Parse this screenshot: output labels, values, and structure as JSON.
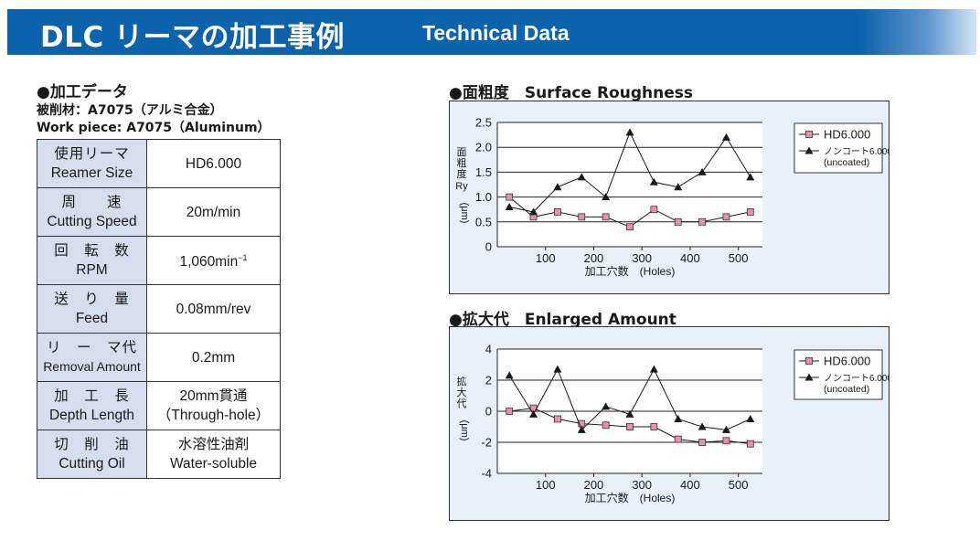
{
  "header": {
    "title_jp": "DLC リーマの加工事例",
    "title_en": "Technical Data"
  },
  "processing": {
    "title": "●加工データ",
    "workpiece_jp": "被削材：A7075（アルミ合金）",
    "workpiece_en": "Work piece: A7075（Aluminum）",
    "rows": [
      {
        "key_jp": "使用リーマ",
        "key_en": "Reamer Size",
        "value": "HD6.000",
        "value2": ""
      },
      {
        "key_jp": "周　　速",
        "key_en": "Cutting Speed",
        "value": "20m/min",
        "value2": ""
      },
      {
        "key_jp": "回　転　数",
        "key_en": "RPM",
        "value": "1,060min",
        "value2": ""
      },
      {
        "key_jp": "送　り　量",
        "key_en": "Feed",
        "value": "0.08mm/rev",
        "value2": ""
      },
      {
        "key_jp": "リ　ー　マ代",
        "key_en": "Removal Amount",
        "value": "0.2mm",
        "value2": ""
      },
      {
        "key_jp": "加　工　長",
        "key_en": "Depth Length",
        "value": "20mm貫通",
        "value2": "（Through-hole）"
      },
      {
        "key_jp": "切　削　油",
        "key_en": "Cutting Oil",
        "value": "水溶性油剤",
        "value2": "Water-soluble"
      }
    ],
    "rpm_superscript": "−1"
  },
  "chart_data": [
    {
      "type": "line",
      "title": "●面粗度　Surface Roughness",
      "xlabel": "加工穴数　(Holes)",
      "ylabel_jp": "面粗度",
      "ylabel_sym": "Ry",
      "ylabel_unit": "(μm)",
      "ylim": [
        0,
        2.5
      ],
      "yticks": [
        0,
        0.5,
        1.0,
        1.5,
        2.0,
        2.5
      ],
      "ytick_labels": [
        "0",
        "0.5",
        "1.0",
        "1.5",
        "2.0",
        "2.5"
      ],
      "xlim": [
        0,
        550
      ],
      "xticks": [
        100,
        200,
        300,
        400,
        500
      ],
      "x": [
        25,
        75,
        125,
        175,
        225,
        275,
        325,
        375,
        425,
        475,
        525
      ],
      "grid": "horizontal",
      "legend_position": "top-right",
      "series": [
        {
          "name": "HD6.000",
          "name2": "",
          "color": "#e98fb4",
          "marker": "square",
          "values": [
            1.0,
            0.6,
            0.7,
            0.6,
            0.6,
            0.4,
            0.75,
            0.5,
            0.5,
            0.6,
            0.7
          ]
        },
        {
          "name": "ノンコート6.000",
          "name2": "(uncoated)",
          "color": "#1a1a1a",
          "marker": "triangle",
          "values": [
            0.8,
            0.7,
            1.2,
            1.4,
            1.0,
            2.3,
            1.3,
            1.2,
            1.5,
            2.2,
            1.4
          ]
        }
      ]
    },
    {
      "type": "line",
      "title": "●拡大代　Enlarged Amount",
      "xlabel": "加工穴数　(Holes)",
      "ylabel_jp": "拡大代",
      "ylabel_sym": "",
      "ylabel_unit": "(μm)",
      "ylim": [
        -4,
        4
      ],
      "yticks": [
        -4,
        -2,
        0,
        2,
        4
      ],
      "ytick_labels": [
        "-4",
        "-2",
        "0",
        "2",
        "4"
      ],
      "xlim": [
        0,
        550
      ],
      "xticks": [
        100,
        200,
        300,
        400,
        500
      ],
      "x": [
        25,
        75,
        125,
        175,
        225,
        275,
        325,
        375,
        425,
        475,
        525
      ],
      "grid": "horizontal",
      "legend_position": "top-right",
      "series": [
        {
          "name": "HD6.000",
          "name2": "",
          "color": "#e98fb4",
          "marker": "square",
          "values": [
            0,
            0.2,
            -0.5,
            -0.8,
            -0.9,
            -1.0,
            -1.0,
            -1.8,
            -2.0,
            -1.9,
            -2.1
          ]
        },
        {
          "name": "ノンコート6.000",
          "name2": "(uncoated)",
          "color": "#1a1a1a",
          "marker": "triangle",
          "values": [
            2.3,
            -0.2,
            2.7,
            -1.2,
            0.3,
            -0.2,
            2.7,
            -0.5,
            -1.0,
            -1.2,
            -0.5
          ]
        }
      ]
    }
  ]
}
